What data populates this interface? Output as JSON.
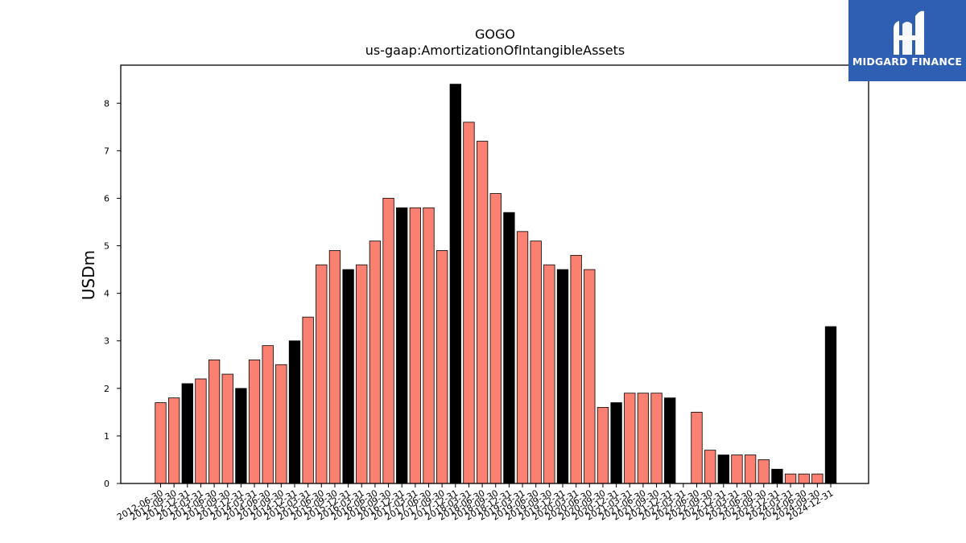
{
  "title": "GOGO",
  "subtitle": "us-gaap:AmortizationOfIntangibleAssets",
  "logo": {
    "text": "MIDGARD FINANCE",
    "bg_color": "#2f5fb3"
  },
  "colors": {
    "quarter": "#fa8072",
    "annual": "#000000"
  },
  "chart_data": {
    "type": "bar",
    "title": "GOGO",
    "subtitle": "us-gaap:AmortizationOfIntangibleAssets",
    "xlabel": "",
    "ylabel": "USDm",
    "ylim": [
      0,
      8.8
    ],
    "yticks": [
      0,
      1,
      2,
      3,
      4,
      5,
      6,
      7,
      8
    ],
    "grid": false,
    "categories": [
      "2012-06-30",
      "2012-09-30",
      "2012-12-31",
      "2013-03-31",
      "2013-06-30",
      "2013-09-30",
      "2013-12-31",
      "2014-03-31",
      "2014-06-30",
      "2014-09-30",
      "2014-12-31",
      "2015-03-31",
      "2015-06-30",
      "2015-09-30",
      "2015-12-31",
      "2016-03-31",
      "2016-06-30",
      "2016-09-30",
      "2016-12-31",
      "2017-03-31",
      "2017-06-30",
      "2017-09-30",
      "2017-12-31",
      "2018-03-31",
      "2018-06-30",
      "2018-09-30",
      "2018-12-31",
      "2019-03-31",
      "2019-06-30",
      "2019-09-30",
      "2019-12-31",
      "2020-03-31",
      "2020-06-30",
      "2020-09-30",
      "2020-12-31",
      "2021-03-31",
      "2021-06-30",
      "2021-09-30",
      "2021-12-31",
      "2022-03-31",
      "2022-06-30",
      "2022-09-30",
      "2022-12-31",
      "2023-03-31",
      "2023-06-30",
      "2023-09-30",
      "2023-12-31",
      "2024-03-31",
      "2024-06-30",
      "2024-09-30",
      "2024-12-31"
    ],
    "values": [
      1.7,
      1.8,
      2.1,
      2.2,
      2.6,
      2.3,
      2.0,
      2.6,
      2.9,
      2.5,
      3.0,
      3.5,
      4.6,
      4.9,
      4.5,
      4.6,
      5.1,
      6.0,
      5.8,
      5.8,
      5.8,
      4.9,
      8.4,
      7.6,
      7.2,
      6.1,
      5.7,
      5.3,
      5.1,
      4.6,
      4.5,
      4.8,
      4.5,
      1.6,
      1.7,
      1.9,
      1.9,
      1.9,
      1.8,
      0,
      1.5,
      0.7,
      0.6,
      0.6,
      0.6,
      0.5,
      0.3,
      0.2,
      0.2,
      0.2,
      3.3
    ],
    "annual": [
      false,
      false,
      true,
      false,
      false,
      false,
      true,
      false,
      false,
      false,
      true,
      false,
      false,
      false,
      true,
      false,
      false,
      false,
      true,
      false,
      false,
      false,
      true,
      false,
      false,
      false,
      true,
      false,
      false,
      false,
      true,
      false,
      false,
      false,
      true,
      false,
      false,
      false,
      true,
      false,
      false,
      false,
      true,
      false,
      false,
      false,
      true,
      false,
      false,
      false,
      true
    ]
  }
}
